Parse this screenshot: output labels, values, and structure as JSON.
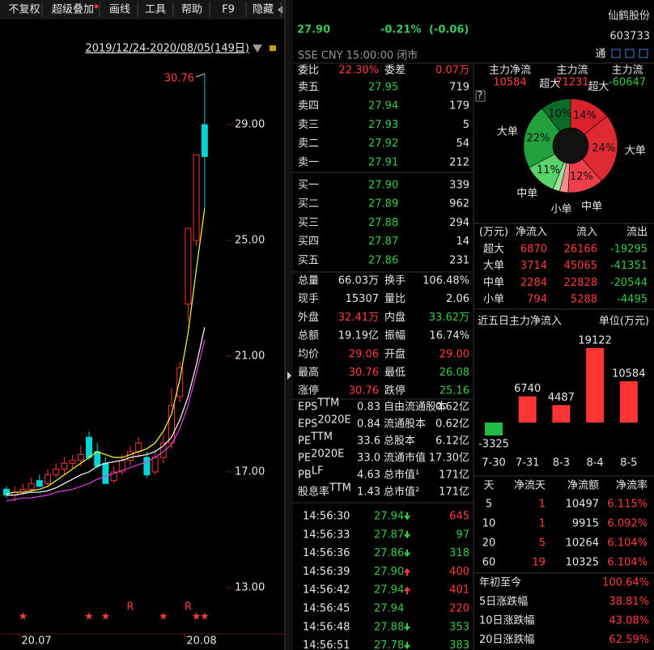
{
  "toolbar": {
    "items": [
      "不复权",
      "超级叠加",
      "画线",
      "工具",
      "帮助",
      "F9",
      "隐藏"
    ]
  },
  "chart_data": [
    {
      "type": "candlestick",
      "date_range": "2019/12/24-2020/08/05(149日)",
      "categories": [
        null,
        null,
        "20.07",
        null,
        null,
        null,
        null,
        null,
        null,
        null,
        null,
        null,
        null,
        null,
        null,
        null,
        null,
        null,
        null,
        null,
        null,
        null,
        "20.08",
        null,
        null
      ],
      "open": [
        16.4,
        16.2,
        16.3,
        16.4,
        16.7,
        16.6,
        16.9,
        17.1,
        17.3,
        17.4,
        18.2,
        17.7,
        17.3,
        16.7,
        17.0,
        17.4,
        17.7,
        17.5,
        17.0,
        17.5,
        18.0,
        19.6,
        22.8,
        25.0,
        29.0
      ],
      "high": [
        16.5,
        16.5,
        16.6,
        16.8,
        16.9,
        17.1,
        17.3,
        17.5,
        17.6,
        17.9,
        18.4,
        18.0,
        17.5,
        17.2,
        17.6,
        17.9,
        18.2,
        17.7,
        17.7,
        18.3,
        19.9,
        20.8,
        25.42,
        27.96,
        30.76
      ],
      "low": [
        16.1,
        16.0,
        16.2,
        16.3,
        16.5,
        16.5,
        16.8,
        16.9,
        17.1,
        17.2,
        17.4,
        17.1,
        16.6,
        16.6,
        16.9,
        17.2,
        17.5,
        16.8,
        16.9,
        17.3,
        17.8,
        19.4,
        22.2,
        24.8,
        26.08
      ],
      "close": [
        16.2,
        16.3,
        16.4,
        16.6,
        16.5,
        16.9,
        17.1,
        17.3,
        17.4,
        17.6,
        17.5,
        17.2,
        16.6,
        17.0,
        17.4,
        17.7,
        18.0,
        16.9,
        17.5,
        18.0,
        19.3,
        20.6,
        25.42,
        27.96,
        27.9
      ],
      "up_color": "#ff3232",
      "down_color": "#00d4d4",
      "ma": [
        {
          "color": "#ffff33",
          "values": [
            16.25,
            16.3,
            16.3,
            16.35,
            16.4,
            16.5,
            16.7,
            16.9,
            17.1,
            17.3,
            17.5,
            17.7,
            17.6,
            17.5,
            17.5,
            17.6,
            17.7,
            17.8,
            18.0,
            18.4,
            19.0,
            20.2,
            21.8,
            24.0,
            26.1
          ]
        },
        {
          "color": "#ffffff",
          "values": [
            16.2,
            16.2,
            16.25,
            16.3,
            16.3,
            16.35,
            16.45,
            16.6,
            16.75,
            16.9,
            17.0,
            17.2,
            17.3,
            17.35,
            17.4,
            17.5,
            17.55,
            17.6,
            17.7,
            17.9,
            18.2,
            18.8,
            19.6,
            20.7,
            22.0
          ]
        },
        {
          "color": "#e040e0",
          "values": [
            16.0,
            16.05,
            16.1,
            16.1,
            16.15,
            16.2,
            16.3,
            16.35,
            16.4,
            16.5,
            16.6,
            16.75,
            16.85,
            16.95,
            17.05,
            17.15,
            17.25,
            17.35,
            17.5,
            17.7,
            17.95,
            18.5,
            19.3,
            20.4,
            21.55
          ]
        }
      ],
      "high_label": "30.76",
      "event_r": [
        null,
        null,
        null,
        null,
        null,
        null,
        null,
        null,
        null,
        null,
        null,
        null,
        null,
        null,
        null,
        "R",
        null,
        null,
        null,
        null,
        null,
        null,
        "R",
        null,
        null
      ],
      "event_stars": [
        null,
        null,
        "★",
        null,
        null,
        null,
        null,
        null,
        null,
        null,
        "★",
        null,
        "★",
        null,
        null,
        null,
        null,
        null,
        null,
        "★",
        null,
        null,
        null,
        "★",
        "★"
      ],
      "ylim": [
        11.35,
        31.35
      ],
      "yticks": [
        {
          "value": 13,
          "label": "13.00"
        },
        {
          "value": 17,
          "label": "17.00"
        },
        {
          "value": 21,
          "label": "21.00"
        },
        {
          "value": 25,
          "label": "25.00"
        },
        {
          "value": 29,
          "label": "29.00"
        }
      ]
    },
    {
      "type": "pie",
      "categories": [
        "超大",
        "大单",
        "中单",
        "小单",
        null,
        "中单",
        "大单",
        "超大"
      ],
      "values": [
        14.1,
        24.4,
        12.3,
        2.9,
        2.4,
        11.1,
        22.3,
        10.4
      ],
      "value_labels": [
        "14%",
        "24%",
        "12%",
        null,
        null,
        "11%",
        "22%",
        "10%"
      ],
      "colors": [
        "#d9222c",
        "#e02a33",
        "#ee3f48",
        "#f58b8b",
        "#9be39b",
        "#5ad36a",
        "#21a03c",
        "#0b6a25"
      ]
    },
    {
      "type": "bar",
      "title": "近五日主力净流入",
      "unit": "单位(万元)",
      "categories": [
        "7-30",
        "7-31",
        "8-3",
        "8-4",
        "8-5"
      ],
      "values": [
        -3325,
        6740,
        4487,
        19122,
        10584
      ],
      "colors": [
        "#22bb44",
        "#ff3434",
        "#ff3434",
        "#ff3434",
        "#ff3434"
      ]
    }
  ],
  "quote": {
    "price": "27.90",
    "change_pct": "-0.21%",
    "change": "(-0.06)",
    "name": "仙鹤股份",
    "code": "603733",
    "status": "SSE  CNY  15:00:00  闭市",
    "tong": "通"
  },
  "order_book": {
    "wb_label": "委比",
    "wb": "22.30%",
    "wc_label": "委差",
    "wc": "0.07万",
    "asks": [
      [
        "卖五",
        "27.95",
        "719"
      ],
      [
        "卖四",
        "27.94",
        "179"
      ],
      [
        "卖三",
        "27.93",
        "5"
      ],
      [
        "卖二",
        "27.92",
        "54"
      ],
      [
        "卖一",
        "27.91",
        "212"
      ]
    ],
    "bids": [
      [
        "买一",
        "27.90",
        "339"
      ],
      [
        "买二",
        "27.89",
        "962"
      ],
      [
        "买三",
        "27.88",
        "294"
      ],
      [
        "买四",
        "27.87",
        "14"
      ],
      [
        "买五",
        "27.86",
        "231"
      ]
    ]
  },
  "stats": {
    "rows": [
      [
        "总量",
        "66.03万",
        "换手",
        "106.48%"
      ],
      [
        "现手",
        "15307",
        "量比",
        "2.06"
      ],
      [
        "外盘",
        "32.41万",
        "内盘",
        "33.62万"
      ],
      [
        "总额",
        "19.19亿",
        "振幅",
        "16.74%"
      ],
      [
        "均价",
        "29.06",
        "开盘",
        "29.00"
      ],
      [
        "最高",
        "30.76",
        "最低",
        "26.08"
      ],
      [
        "涨停",
        "30.76",
        "跌停",
        "25.16"
      ]
    ],
    "value_colors": [
      [
        "white",
        "white"
      ],
      [
        "white",
        "white"
      ],
      [
        "red",
        "green"
      ],
      [
        "white",
        "white"
      ],
      [
        "red",
        "red"
      ],
      [
        "red",
        "green"
      ],
      [
        "red",
        "green"
      ]
    ]
  },
  "finance": {
    "rows": [
      [
        "EPS",
        "TTM",
        "0.83",
        "自由流通股本",
        "0.62亿"
      ],
      [
        "EPS",
        "2020E",
        "0.84",
        "流通股本",
        "0.62亿"
      ],
      [
        "PE",
        "TTM",
        "33.6",
        "总股本",
        "6.12亿"
      ],
      [
        "PE",
        "2020E",
        "33.0",
        "流通市值",
        "17.30亿"
      ],
      [
        "PB",
        "LF",
        "4.63",
        "总市值¹",
        "171亿"
      ],
      [
        "股息率",
        "TTM",
        "1.43",
        "总市值²",
        "171亿"
      ]
    ]
  },
  "ticks": {
    "rows": [
      [
        "14:56:30",
        "27.94",
        "645"
      ],
      [
        "14:56:33",
        "27.87",
        "97"
      ],
      [
        "14:56:36",
        "27.86",
        "318"
      ],
      [
        "14:56:39",
        "27.90",
        "400"
      ],
      [
        "14:56:42",
        "27.94",
        "401"
      ],
      [
        "14:56:45",
        "27.94",
        "220"
      ],
      [
        "14:56:48",
        "27.88",
        "353"
      ],
      [
        "14:56:51",
        "27.78",
        "383"
      ]
    ],
    "arrows": [
      "down",
      "down",
      "down",
      "up",
      "up",
      null,
      "down",
      "down"
    ],
    "vol_colors": [
      "red",
      "green",
      "green",
      "red",
      "red",
      "red",
      "green",
      "green"
    ]
  },
  "main_flow": {
    "labels": [
      "主力净流",
      "主力流",
      "主力流"
    ],
    "values": [
      "10584",
      "71231",
      "-60647"
    ],
    "colors": [
      "red",
      "red",
      "green"
    ],
    "help": "?"
  },
  "flow_table": {
    "header": [
      "(万元)",
      "净流入",
      "流入",
      "流出"
    ],
    "rows": [
      [
        "超大",
        "6870",
        "26166",
        "-19295"
      ],
      [
        "大单",
        "3714",
        "45065",
        "-41351"
      ],
      [
        "中单",
        "2284",
        "22828",
        "-20544"
      ],
      [
        "小单",
        "794",
        "5288",
        "-4495"
      ]
    ]
  },
  "days_table": {
    "header": [
      "天",
      "净流天",
      "净流额",
      "净流率"
    ],
    "rows": [
      [
        "5",
        "1",
        "10497",
        "6.115%"
      ],
      [
        "10",
        "1",
        "9915",
        "6.092%"
      ],
      [
        "20",
        "5",
        "10264",
        "6.104%"
      ],
      [
        "60",
        "19",
        "10325",
        "6.104%"
      ]
    ]
  },
  "performance": {
    "rows": [
      [
        "年初至今",
        "100.64%"
      ],
      [
        "5日涨跌幅",
        "38.81%"
      ],
      [
        "10日涨跌幅",
        "43.08%"
      ],
      [
        "20日涨跌幅",
        "62.59%"
      ]
    ]
  }
}
